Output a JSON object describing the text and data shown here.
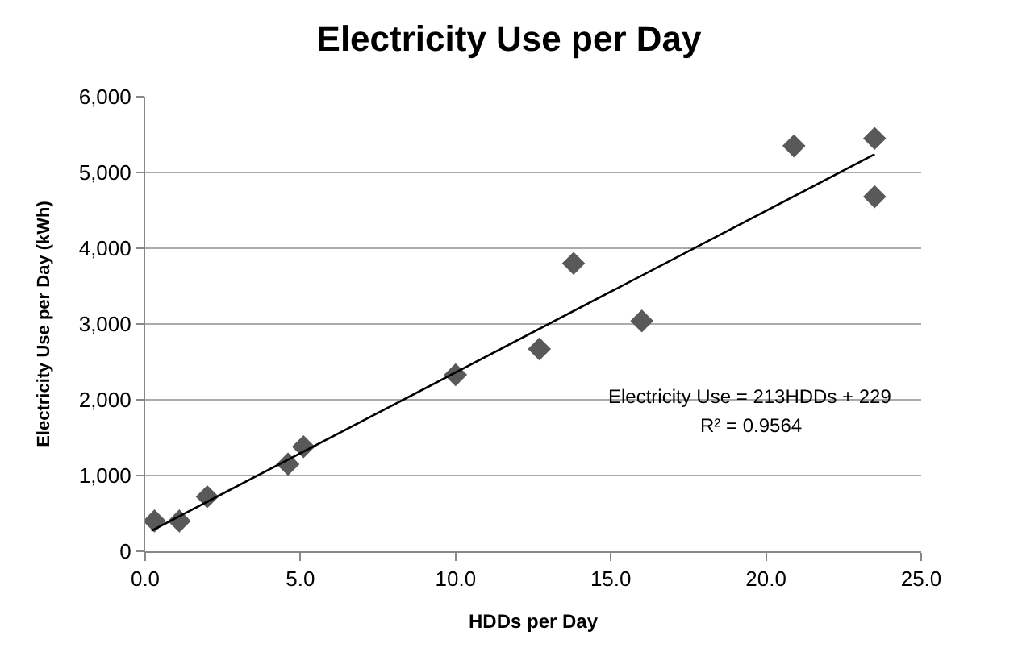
{
  "chart_data": {
    "type": "scatter",
    "title": "Electricity Use per Day",
    "xlabel": "HDDs per Day",
    "ylabel": "Electricity Use per Day (kWh)",
    "xlim": [
      0,
      25
    ],
    "xticks": [
      {
        "value": 0,
        "label": "0.0"
      },
      {
        "value": 5,
        "label": "5.0"
      },
      {
        "value": 10,
        "label": "10.0"
      },
      {
        "value": 15,
        "label": "15.0"
      },
      {
        "value": 20,
        "label": "20.0"
      },
      {
        "value": 25,
        "label": "25.0"
      }
    ],
    "ylim": [
      0,
      6000
    ],
    "yticks": [
      {
        "value": 0,
        "label": "0"
      },
      {
        "value": 1000,
        "label": "1,000"
      },
      {
        "value": 2000,
        "label": "2,000"
      },
      {
        "value": 3000,
        "label": "3,000"
      },
      {
        "value": 4000,
        "label": "4,000"
      },
      {
        "value": 5000,
        "label": "5,000"
      },
      {
        "value": 6000,
        "label": "6,000"
      }
    ],
    "grid": "y",
    "legend": false,
    "marker": "diamond",
    "series": [
      {
        "color": "#595959",
        "x": [
          0.3,
          1.1,
          2.0,
          4.6,
          5.1,
          10.0,
          12.7,
          13.8,
          16.0,
          20.9,
          23.5,
          23.5
        ],
        "values": [
          400,
          400,
          720,
          1150,
          1380,
          2330,
          2670,
          3800,
          3040,
          5350,
          5450,
          4680
        ]
      },
      {
        "type": "line",
        "color": "#000000",
        "x": [
          0.2,
          23.5
        ],
        "values": [
          270,
          5240
        ],
        "marker": "none",
        "line_style": "solid"
      }
    ],
    "annotations": [
      "Electricity Use = 213HDDs + 229",
      "R² = 0.9564"
    ]
  }
}
